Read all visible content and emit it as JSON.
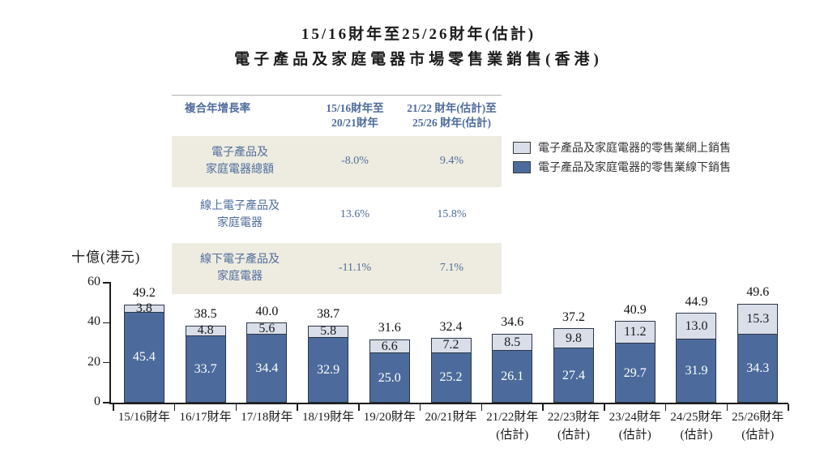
{
  "title": {
    "line1": "15/16財年至25/26財年(估計)",
    "line2": "電子產品及家庭電器市場零售業銷售(香港)"
  },
  "table": {
    "header": {
      "col1": "複合年增長率",
      "col2": "15/16財年至\n20/21財年",
      "col3": "21/22 財年(估計)至\n25/26 財年(估計)"
    },
    "rows": [
      {
        "label": "電子產品及\n家庭電器總額",
        "period1": "-8.0%",
        "period2": "9.4%"
      },
      {
        "label": "線上電子產品及\n家庭電器",
        "period1": "13.6%",
        "period2": "15.8%"
      },
      {
        "label": "線下電子產品及\n家庭電器",
        "period1": "-11.1%",
        "period2": "7.1%"
      }
    ],
    "shade_color": "#eeece0",
    "text_color": "#4f6d9d"
  },
  "chart_data": {
    "type": "bar",
    "stacked": true,
    "unit_label": "十億(港元)",
    "ylim": [
      0,
      60
    ],
    "yticks": [
      0,
      20,
      40,
      60
    ],
    "grid": false,
    "legend_position": "top-right",
    "categories": [
      {
        "line1": "15/16財年",
        "line2": ""
      },
      {
        "line1": "16/17財年",
        "line2": ""
      },
      {
        "line1": "17/18財年",
        "line2": ""
      },
      {
        "line1": "18/19財年",
        "line2": ""
      },
      {
        "line1": "19/20財年",
        "line2": ""
      },
      {
        "line1": "20/21財年",
        "line2": ""
      },
      {
        "line1": "21/22財年",
        "line2": "(估計)"
      },
      {
        "line1": "22/23財年",
        "line2": "(估計)"
      },
      {
        "line1": "23/24財年",
        "line2": "(估計)"
      },
      {
        "line1": "24/25財年",
        "line2": "(估計)"
      },
      {
        "line1": "25/26財年",
        "line2": "(估計)"
      }
    ],
    "series": [
      {
        "name": "電子產品及家庭電器的零售業網上銷售",
        "color": "#d9dee9",
        "values": [
          3.8,
          4.8,
          5.6,
          5.8,
          6.6,
          7.2,
          8.5,
          9.8,
          11.2,
          13.0,
          15.3
        ]
      },
      {
        "name": "電子產品及家庭電器的零售業線下銷售",
        "color": "#4c6b9c",
        "values": [
          45.4,
          33.7,
          34.4,
          32.9,
          25.0,
          25.2,
          26.1,
          27.4,
          29.7,
          31.9,
          34.3
        ]
      }
    ],
    "totals": [
      49.2,
      38.5,
      40.0,
      38.7,
      31.6,
      32.4,
      34.6,
      37.2,
      40.9,
      44.9,
      49.6
    ]
  }
}
